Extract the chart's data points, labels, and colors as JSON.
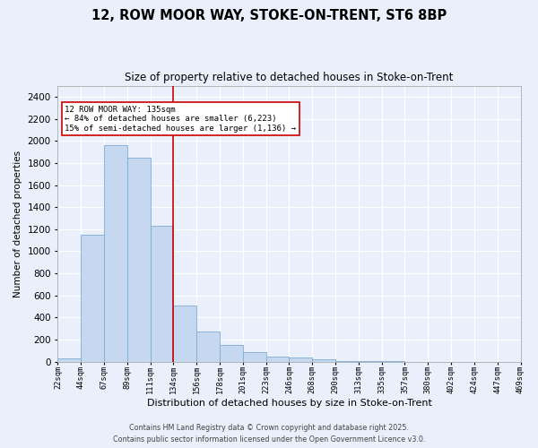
{
  "title_line1": "12, ROW MOOR WAY, STOKE-ON-TRENT, ST6 8BP",
  "title_line2": "Size of property relative to detached houses in Stoke-on-Trent",
  "xlabel": "Distribution of detached houses by size in Stoke-on-Trent",
  "ylabel": "Number of detached properties",
  "heights": [
    30,
    1150,
    1960,
    1850,
    1230,
    510,
    270,
    155,
    90,
    48,
    42,
    20,
    10,
    5,
    3,
    2,
    2,
    2,
    2,
    1
  ],
  "categories": [
    "22sqm",
    "44sqm",
    "67sqm",
    "89sqm",
    "111sqm",
    "134sqm",
    "156sqm",
    "178sqm",
    "201sqm",
    "223sqm",
    "246sqm",
    "268sqm",
    "290sqm",
    "313sqm",
    "335sqm",
    "357sqm",
    "380sqm",
    "402sqm",
    "424sqm",
    "447sqm",
    "469sqm"
  ],
  "bar_color": "#c5d8f0",
  "bar_edge_color": "#7badd4",
  "vline_color": "#cc0000",
  "vline_x": 5.0,
  "annotation_text": "12 ROW MOOR WAY: 135sqm\n← 84% of detached houses are smaller (6,223)\n15% of semi-detached houses are larger (1,136) →",
  "annotation_box_color": "#cc0000",
  "ylim": [
    0,
    2500
  ],
  "yticks": [
    0,
    200,
    400,
    600,
    800,
    1000,
    1200,
    1400,
    1600,
    1800,
    2000,
    2200,
    2400
  ],
  "bg_color": "#eaf0fb",
  "grid_color": "#ffffff",
  "footer_line1": "Contains HM Land Registry data © Crown copyright and database right 2025.",
  "footer_line2": "Contains public sector information licensed under the Open Government Licence v3.0."
}
